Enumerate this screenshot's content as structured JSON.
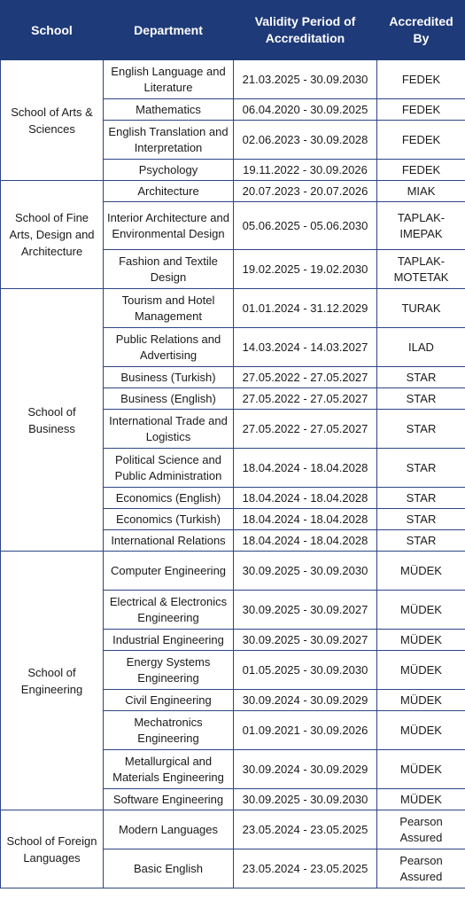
{
  "headers": {
    "school": "School",
    "department": "Department",
    "validity": "Validity Period of Accreditation",
    "accredited_by": "Accredited By"
  },
  "schools": [
    {
      "name": "School of Arts & Sciences",
      "rows": [
        {
          "department": "English Language and Literature",
          "validity": "21.03.2025 - 30.09.2030",
          "accredited_by": "FEDEK"
        },
        {
          "department": "Mathematics",
          "validity": "06.04.2020 - 30.09.2025",
          "accredited_by": "FEDEK"
        },
        {
          "department": "English Translation and Interpretation",
          "validity": "02.06.2023 - 30.09.2028",
          "accredited_by": "FEDEK"
        },
        {
          "department": "Psychology",
          "validity": "19.11.2022 - 30.09.2026",
          "accredited_by": "FEDEK"
        }
      ]
    },
    {
      "name": "School of Fine Arts, Design and Architecture",
      "rows": [
        {
          "department": "Architecture",
          "validity": "20.07.2023 - 20.07.2026",
          "accredited_by": "MIAK"
        },
        {
          "department": "Interior Architecture and Environmental Design",
          "validity": "05.06.2025 - 05.06.2030",
          "accredited_by": "TAPLAK-IMEPAK"
        },
        {
          "department": "Fashion and Textile Design",
          "validity": "19.02.2025 - 19.02.2030",
          "accredited_by": "TAPLAK-MOTETAK"
        }
      ]
    },
    {
      "name": "School of Business",
      "rows": [
        {
          "department": "Tourism and Hotel Management",
          "validity": "01.01.2024 - 31.12.2029",
          "accredited_by": "TURAK"
        },
        {
          "department": "Public Relations and Advertising",
          "validity": "14.03.2024 - 14.03.2027",
          "accredited_by": "ILAD"
        },
        {
          "department": "Business (Turkish)",
          "validity": "27.05.2022 - 27.05.2027",
          "accredited_by": "STAR"
        },
        {
          "department": "Business (English)",
          "validity": "27.05.2022 - 27.05.2027",
          "accredited_by": "STAR"
        },
        {
          "department": "International Trade and Logistics",
          "validity": "27.05.2022 - 27.05.2027",
          "accredited_by": "STAR"
        },
        {
          "department": "Political Science and Public Administration",
          "validity": "18.04.2024 - 18.04.2028",
          "accredited_by": "STAR"
        },
        {
          "department": "Economics (English)",
          "validity": "18.04.2024 - 18.04.2028",
          "accredited_by": "STAR"
        },
        {
          "department": "Economics (Turkish)",
          "validity": "18.04.2024 - 18.04.2028",
          "accredited_by": "STAR"
        },
        {
          "department": "International Relations",
          "validity": "18.04.2024 - 18.04.2028",
          "accredited_by": "STAR"
        }
      ]
    },
    {
      "name": "School of Engineering",
      "rows": [
        {
          "department": "Computer Engineering",
          "validity": "30.09.2025 - 30.09.2030",
          "accredited_by": "MÜDEK"
        },
        {
          "department": "Electrical & Electronics Engineering",
          "validity": "30.09.2025 - 30.09.2027",
          "accredited_by": "MÜDEK"
        },
        {
          "department": "Industrial Engineering",
          "validity": "30.09.2025 - 30.09.2027",
          "accredited_by": "MÜDEK"
        },
        {
          "department": "Energy Systems Engineering",
          "validity": "01.05.2025 - 30.09.2030",
          "accredited_by": "MÜDEK"
        },
        {
          "department": "Civil Engineering",
          "validity": "30.09.2024 - 30.09.2029",
          "accredited_by": "MÜDEK"
        },
        {
          "department": "Mechatronics Engineering",
          "validity": "01.09.2021 - 30.09.2026",
          "accredited_by": "MÜDEK"
        },
        {
          "department": "Metallurgical and Materials Engineering",
          "validity": "30.09.2024 - 30.09.2029",
          "accredited_by": "MÜDEK"
        },
        {
          "department": "Software Engineering",
          "validity": "30.09.2025 - 30.09.2030",
          "accredited_by": "MÜDEK"
        }
      ]
    },
    {
      "name": "School of Foreign Languages",
      "rows": [
        {
          "department": "Modern Languages",
          "validity": "23.05.2024 - 23.05.2025",
          "accredited_by": "Pearson Assured"
        },
        {
          "department": "Basic English",
          "validity": "23.05.2024 - 23.05.2025",
          "accredited_by": "Pearson Assured"
        }
      ]
    }
  ],
  "colors": {
    "header_bg": "#1f3a78",
    "header_text": "#ffffff",
    "border": "#2c4585"
  }
}
